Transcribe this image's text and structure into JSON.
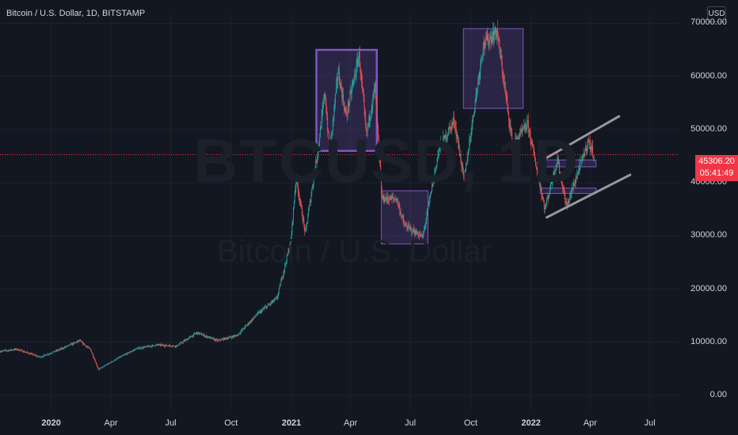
{
  "header": {
    "title": "Bitcoin / U.S. Dollar, 1D, BITSTAMP"
  },
  "currency_button": "USD",
  "watermark": {
    "symbol": "BTCUSD, 1D",
    "description": "Bitcoin / U.S. Dollar"
  },
  "price_label": {
    "price": "45306.20",
    "countdown": "05:41:49"
  },
  "colors": {
    "background": "#131722",
    "up": "#26a69a",
    "down": "#ef5350",
    "box": "#7e57c2",
    "price_line": "#f23645"
  },
  "chart_data": {
    "type": "candlestick",
    "title": "Bitcoin / U.S. Dollar, 1D, BITSTAMP",
    "ylim": [
      0,
      72000
    ],
    "xlim": [
      "2019-10-15",
      "2022-08-15"
    ],
    "y_ticks": [
      "70000.00",
      "60000.00",
      "50000.00",
      "40000.00",
      "30000.00",
      "20000.00",
      "10000.00",
      "0.00"
    ],
    "x_ticks": [
      {
        "label": "2020",
        "date": "2020-01-01",
        "year": true
      },
      {
        "label": "Apr",
        "date": "2020-04-01",
        "year": false
      },
      {
        "label": "Jul",
        "date": "2020-07-01",
        "year": false
      },
      {
        "label": "Oct",
        "date": "2020-10-01",
        "year": false
      },
      {
        "label": "2021",
        "date": "2021-01-01",
        "year": true
      },
      {
        "label": "Apr",
        "date": "2021-04-01",
        "year": false
      },
      {
        "label": "Jul",
        "date": "2021-07-01",
        "year": false
      },
      {
        "label": "Oct",
        "date": "2021-10-01",
        "year": false
      },
      {
        "label": "2022",
        "date": "2022-01-01",
        "year": true
      },
      {
        "label": "Apr",
        "date": "2022-04-01",
        "year": false
      },
      {
        "label": "Jul",
        "date": "2022-07-01",
        "year": false
      }
    ],
    "current_price": 45306.2,
    "price_path": [
      [
        "2019-10-15",
        8300
      ],
      [
        "2019-11-10",
        8700
      ],
      [
        "2019-12-15",
        7200
      ],
      [
        "2020-01-15",
        8700
      ],
      [
        "2020-02-13",
        10300
      ],
      [
        "2020-03-01",
        8600
      ],
      [
        "2020-03-13",
        4900
      ],
      [
        "2020-04-10",
        6900
      ],
      [
        "2020-05-10",
        8800
      ],
      [
        "2020-06-10",
        9500
      ],
      [
        "2020-07-10",
        9300
      ],
      [
        "2020-08-10",
        11800
      ],
      [
        "2020-09-10",
        10300
      ],
      [
        "2020-10-10",
        11300
      ],
      [
        "2020-11-10",
        15300
      ],
      [
        "2020-12-10",
        18300
      ],
      [
        "2020-12-31",
        29000
      ],
      [
        "2021-01-08",
        41000
      ],
      [
        "2021-01-22",
        30500
      ],
      [
        "2021-02-10",
        46000
      ],
      [
        "2021-02-21",
        57000
      ],
      [
        "2021-02-28",
        45500
      ],
      [
        "2021-03-13",
        61000
      ],
      [
        "2021-03-25",
        52500
      ],
      [
        "2021-04-14",
        64000
      ],
      [
        "2021-04-25",
        49000
      ],
      [
        "2021-05-08",
        58000
      ],
      [
        "2021-05-19",
        37000
      ],
      [
        "2021-06-10",
        37000
      ],
      [
        "2021-06-22",
        32000
      ],
      [
        "2021-07-20",
        29800
      ],
      [
        "2021-08-14",
        46500
      ],
      [
        "2021-09-06",
        51800
      ],
      [
        "2021-09-21",
        40500
      ],
      [
        "2021-10-20",
        66000
      ],
      [
        "2021-11-10",
        68500
      ],
      [
        "2021-12-04",
        47000
      ],
      [
        "2021-12-27",
        51000
      ],
      [
        "2022-01-22",
        35000
      ],
      [
        "2022-02-10",
        44500
      ],
      [
        "2022-02-24",
        35500
      ],
      [
        "2022-03-29",
        47800
      ],
      [
        "2022-04-07",
        45306
      ]
    ],
    "annotations": [
      {
        "type": "rectangle",
        "x0": "2021-02-08",
        "x1": "2021-05-11",
        "y0": 46000,
        "y1": 65000,
        "border": "bold"
      },
      {
        "type": "rectangle",
        "x0": "2021-05-18",
        "x1": "2021-07-28",
        "y0": 28500,
        "y1": 38500
      },
      {
        "type": "rectangle",
        "x0": "2021-09-20",
        "x1": "2021-12-20",
        "y0": 54000,
        "y1": 69000
      },
      {
        "type": "rectangle",
        "x0": "2022-01-15",
        "x1": "2022-04-10",
        "y0": 43000,
        "y1": 44300
      },
      {
        "type": "rectangle",
        "x0": "2022-01-15",
        "x1": "2022-04-10",
        "y0": 38000,
        "y1": 39000
      },
      {
        "type": "trendline",
        "from": [
          "2022-01-12",
          43800
        ],
        "to": [
          "2022-05-15",
          52500
        ]
      },
      {
        "type": "trendline",
        "from": [
          "2022-01-25",
          33500
        ],
        "to": [
          "2022-06-01",
          41500
        ]
      }
    ]
  }
}
